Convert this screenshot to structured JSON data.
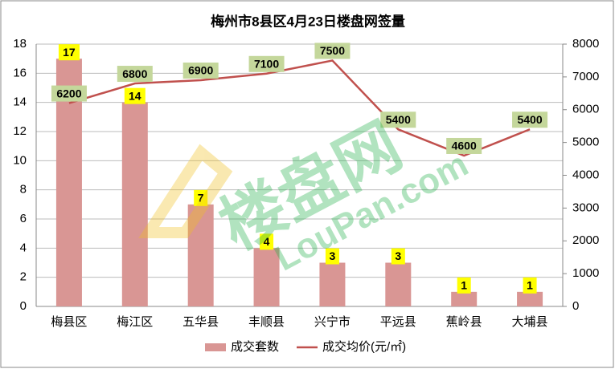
{
  "chart_data": {
    "type": "bar-line",
    "title": "梅州市8县区4月23日楼盘网签量",
    "categories": [
      "梅县区",
      "梅江区",
      "五华县",
      "丰顺县",
      "兴宁市",
      "平远县",
      "蕉岭县",
      "大埔县"
    ],
    "series": [
      {
        "name": "成交套数",
        "type": "bar",
        "color": "#d99694",
        "label_color": "#ffff00",
        "values": [
          17,
          14,
          7,
          4,
          3,
          3,
          1,
          1
        ]
      },
      {
        "name": "成交均价(元/㎡)",
        "type": "line",
        "axis": "y2",
        "color": "#c0504d",
        "label_color": "#c4d79b",
        "values": [
          6200,
          6800,
          6900,
          7100,
          7500,
          5400,
          4600,
          5400
        ]
      }
    ],
    "ylim": [
      0,
      18
    ],
    "yticks": [
      0,
      2,
      4,
      6,
      8,
      10,
      12,
      14,
      16,
      18
    ],
    "y2lim": [
      0,
      8000
    ],
    "y2ticks": [
      0,
      1000,
      2000,
      3000,
      4000,
      5000,
      6000,
      7000,
      8000
    ],
    "grid": true,
    "legend": "bottom",
    "watermark": "楼盘网",
    "watermark_sub": "LouPan.com"
  }
}
